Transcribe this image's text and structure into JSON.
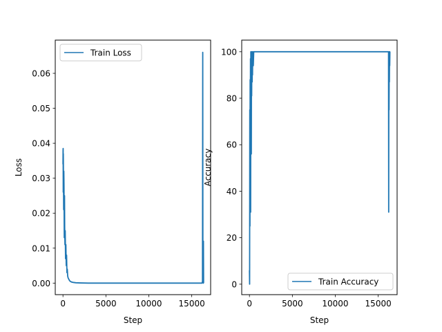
{
  "figure": {
    "background": "#ffffff"
  },
  "chart_data": [
    {
      "type": "line",
      "xlabel": "Step",
      "ylabel": "Loss",
      "xlim": [
        -900,
        17200
      ],
      "ylim": [
        -0.0033,
        0.0695
      ],
      "xticks": [
        0,
        5000,
        10000,
        15000
      ],
      "xtick_labels": [
        "0",
        "5000",
        "10000",
        "15000"
      ],
      "yticks": [
        0.0,
        0.01,
        0.02,
        0.03,
        0.04,
        0.05,
        0.06
      ],
      "ytick_labels": [
        "0.00",
        "0.01",
        "0.02",
        "0.03",
        "0.04",
        "0.05",
        "0.06"
      ],
      "grid": false,
      "legend_position": "top-left",
      "series": [
        {
          "name": "Train Loss",
          "color": "#1f77b4",
          "x": [
            0,
            10,
            20,
            30,
            40,
            60,
            80,
            100,
            120,
            150,
            180,
            200,
            230,
            260,
            300,
            340,
            380,
            420,
            460,
            500,
            550,
            600,
            700,
            800,
            1000,
            1200,
            1500,
            2000,
            3000,
            5000,
            8000,
            10000,
            12000,
            14000,
            16000,
            16200,
            16250,
            16280,
            16300,
            16320,
            16340,
            16360,
            16380,
            16400
          ],
          "y": [
            0.034,
            0.038,
            0.0385,
            0.026,
            0.037,
            0.03,
            0.021,
            0.032,
            0.028,
            0.013,
            0.025,
            0.016,
            0.011,
            0.015,
            0.007,
            0.011,
            0.005,
            0.008,
            0.003,
            0.004,
            0.002,
            0.0015,
            0.001,
            0.0006,
            0.0003,
            0.0002,
            0.0001,
            5e-05,
            0.0,
            0.0,
            0.0,
            0.0,
            0.0,
            0.0,
            0.0,
            0.0,
            0.0005,
            0.066,
            0.001,
            0.005,
            0.0,
            0.012,
            0.0,
            0.0
          ]
        }
      ]
    },
    {
      "type": "line",
      "xlabel": "Step",
      "ylabel": "Accuracy",
      "xlim": [
        -900,
        17200
      ],
      "ylim": [
        -4.5,
        105
      ],
      "xticks": [
        0,
        5000,
        10000,
        15000
      ],
      "xtick_labels": [
        "0",
        "5000",
        "10000",
        "15000"
      ],
      "yticks": [
        0,
        20,
        40,
        60,
        80,
        100
      ],
      "ytick_labels": [
        "0",
        "20",
        "40",
        "60",
        "80",
        "100"
      ],
      "grid": false,
      "legend_position": "bottom-right",
      "series": [
        {
          "name": "Train Accuracy",
          "color": "#1f77b4",
          "x": [
            0,
            20,
            40,
            60,
            80,
            100,
            120,
            140,
            160,
            180,
            200,
            220,
            240,
            260,
            280,
            300,
            320,
            340,
            360,
            380,
            400,
            450,
            500,
            600,
            800,
            1000,
            2000,
            5000,
            10000,
            15000,
            16000,
            16100,
            16150,
            16200,
            16220,
            16240,
            16260,
            16280,
            16300,
            16320,
            16340,
            16360,
            16380,
            16400
          ],
          "y": [
            6,
            0,
            75,
            25,
            88,
            50,
            97,
            31,
            100,
            62,
            94,
            56,
            100,
            81,
            100,
            94,
            87,
            100,
            90,
            100,
            100,
            94,
            100,
            100,
            100,
            100,
            100,
            100,
            100,
            100,
            100,
            100,
            100,
            100,
            31,
            100,
            75,
            95,
            87,
            100,
            94,
            100,
            100,
            100
          ]
        }
      ]
    }
  ]
}
